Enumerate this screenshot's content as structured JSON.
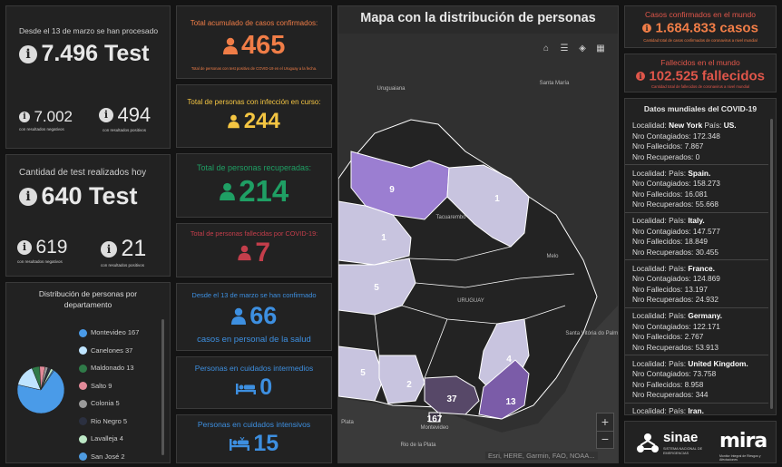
{
  "test_panel": {
    "processed_label": "Desde el 13 de marzo se han procesado",
    "processed_value": "7.496 Test",
    "neg_value": "7.002",
    "neg_label": "con resultados negativos",
    "pos_value": "494",
    "pos_label": "con resultados positivos"
  },
  "today_panel": {
    "label": "Cantidad de test realizados hoy",
    "value": "640 Test",
    "neg_value": "619",
    "neg_label": "con resultados negativos",
    "pos_value": "21",
    "pos_label": "con resultados positivos"
  },
  "dist_panel": {
    "title": "Distribución de personas por departamento",
    "legend": [
      {
        "label": "Montevideo",
        "value": "167",
        "color": "#4a9be8"
      },
      {
        "label": "Canelones",
        "value": "37",
        "color": "#bfe4ff"
      },
      {
        "label": "Maldonado",
        "value": "13",
        "color": "#2f7a48"
      },
      {
        "label": "Salto",
        "value": "9",
        "color": "#e28a99"
      },
      {
        "label": "Colonia",
        "value": "5",
        "color": "#9a9a9a"
      },
      {
        "label": "Rio Negro",
        "value": "5",
        "color": "#2b3040"
      },
      {
        "label": "Lavalleja",
        "value": "4",
        "color": "#bde8c6"
      },
      {
        "label": "San José",
        "value": "2",
        "color": "#4e9be0"
      }
    ]
  },
  "stats": {
    "confirmed_label": "Total acumulado de casos confirmados:",
    "confirmed_value": "465",
    "confirmed_note": "Total de personas con test positivo de COVID-19 en el Uruguay a la fecha.",
    "active_label": "Total de personas con infección en curso:",
    "active_value": "244",
    "recovered_label": "Total de personas recuperadas:",
    "recovered_value": "214",
    "deceased_label": "Total de personas fallecidas por COVID-19:",
    "deceased_value": "7",
    "health_label": "Desde el 13 de marzo se han confirmado",
    "health_value": "66",
    "health_sub": "casos en personal de la salud",
    "intermediate_label": "Personas en cuidados intermedios",
    "intermediate_value": "0",
    "intensive_label": "Personas en cuidados intensivos",
    "intensive_value": "15"
  },
  "map": {
    "title": "Mapa con la distribución de personas",
    "labels": [
      "Uruguaiana",
      "Santa María",
      "Tacuarembó",
      "Melo",
      "URUGUAY",
      "Santa Vitória do Palmar",
      "Plata",
      "Rio de la Plata",
      "Montevideo"
    ],
    "regions": [
      "9",
      "1",
      "1",
      "5",
      "4",
      "5",
      "2",
      "37",
      "13",
      "167"
    ],
    "attribution": "Esri, HERE, Garmin, FAO, NOAA...",
    "zoom_in": "+",
    "zoom_out": "−"
  },
  "world": {
    "confirmed_label": "Casos confirmados en el mundo",
    "confirmed_value": "1.684.833 casos",
    "confirmed_note": "Cantidad total de casos confirmados de coronavirus a nivel mundial",
    "deaths_label": "Fallecidos en el mundo",
    "deaths_value": "102.525 fallecidos",
    "deaths_note": "Cantidad total de fallecidos de coronavirus a nivel mundial",
    "list_title": "Datos mundiales del COVID-19",
    "k_localidad": "Localidad:",
    "k_pais": "País:",
    "k_contagiados": "Nro Contagiados:",
    "k_fallecidos": "Nro Fallecidos:",
    "k_recuperados": "Nro Recuperados:",
    "records": [
      {
        "loc": "New York",
        "country": "US.",
        "cont": "172.348",
        "fall": "7.867",
        "rec": "0"
      },
      {
        "loc": "",
        "country": "Spain.",
        "cont": "158.273",
        "fall": "16.081",
        "rec": "55.668"
      },
      {
        "loc": "",
        "country": "Italy.",
        "cont": "147.577",
        "fall": "18.849",
        "rec": "30.455"
      },
      {
        "loc": "",
        "country": "France.",
        "cont": "124.869",
        "fall": "13.197",
        "rec": "24.932"
      },
      {
        "loc": "",
        "country": "Germany.",
        "cont": "122.171",
        "fall": "2.767",
        "rec": "53.913"
      },
      {
        "loc": "",
        "country": "United Kingdom.",
        "cont": "73.758",
        "fall": "8.958",
        "rec": "344"
      },
      {
        "loc": "",
        "country": "Iran.",
        "cont": "",
        "fall": "",
        "rec": ""
      }
    ]
  },
  "logos": {
    "sinae": "sinae",
    "sinae_sub": "SISTEMA NACIONAL DE EMERGENCIAS",
    "mira": "mira",
    "mira_sub": "Monitor Integral de Riesgos y Afectaciones"
  }
}
